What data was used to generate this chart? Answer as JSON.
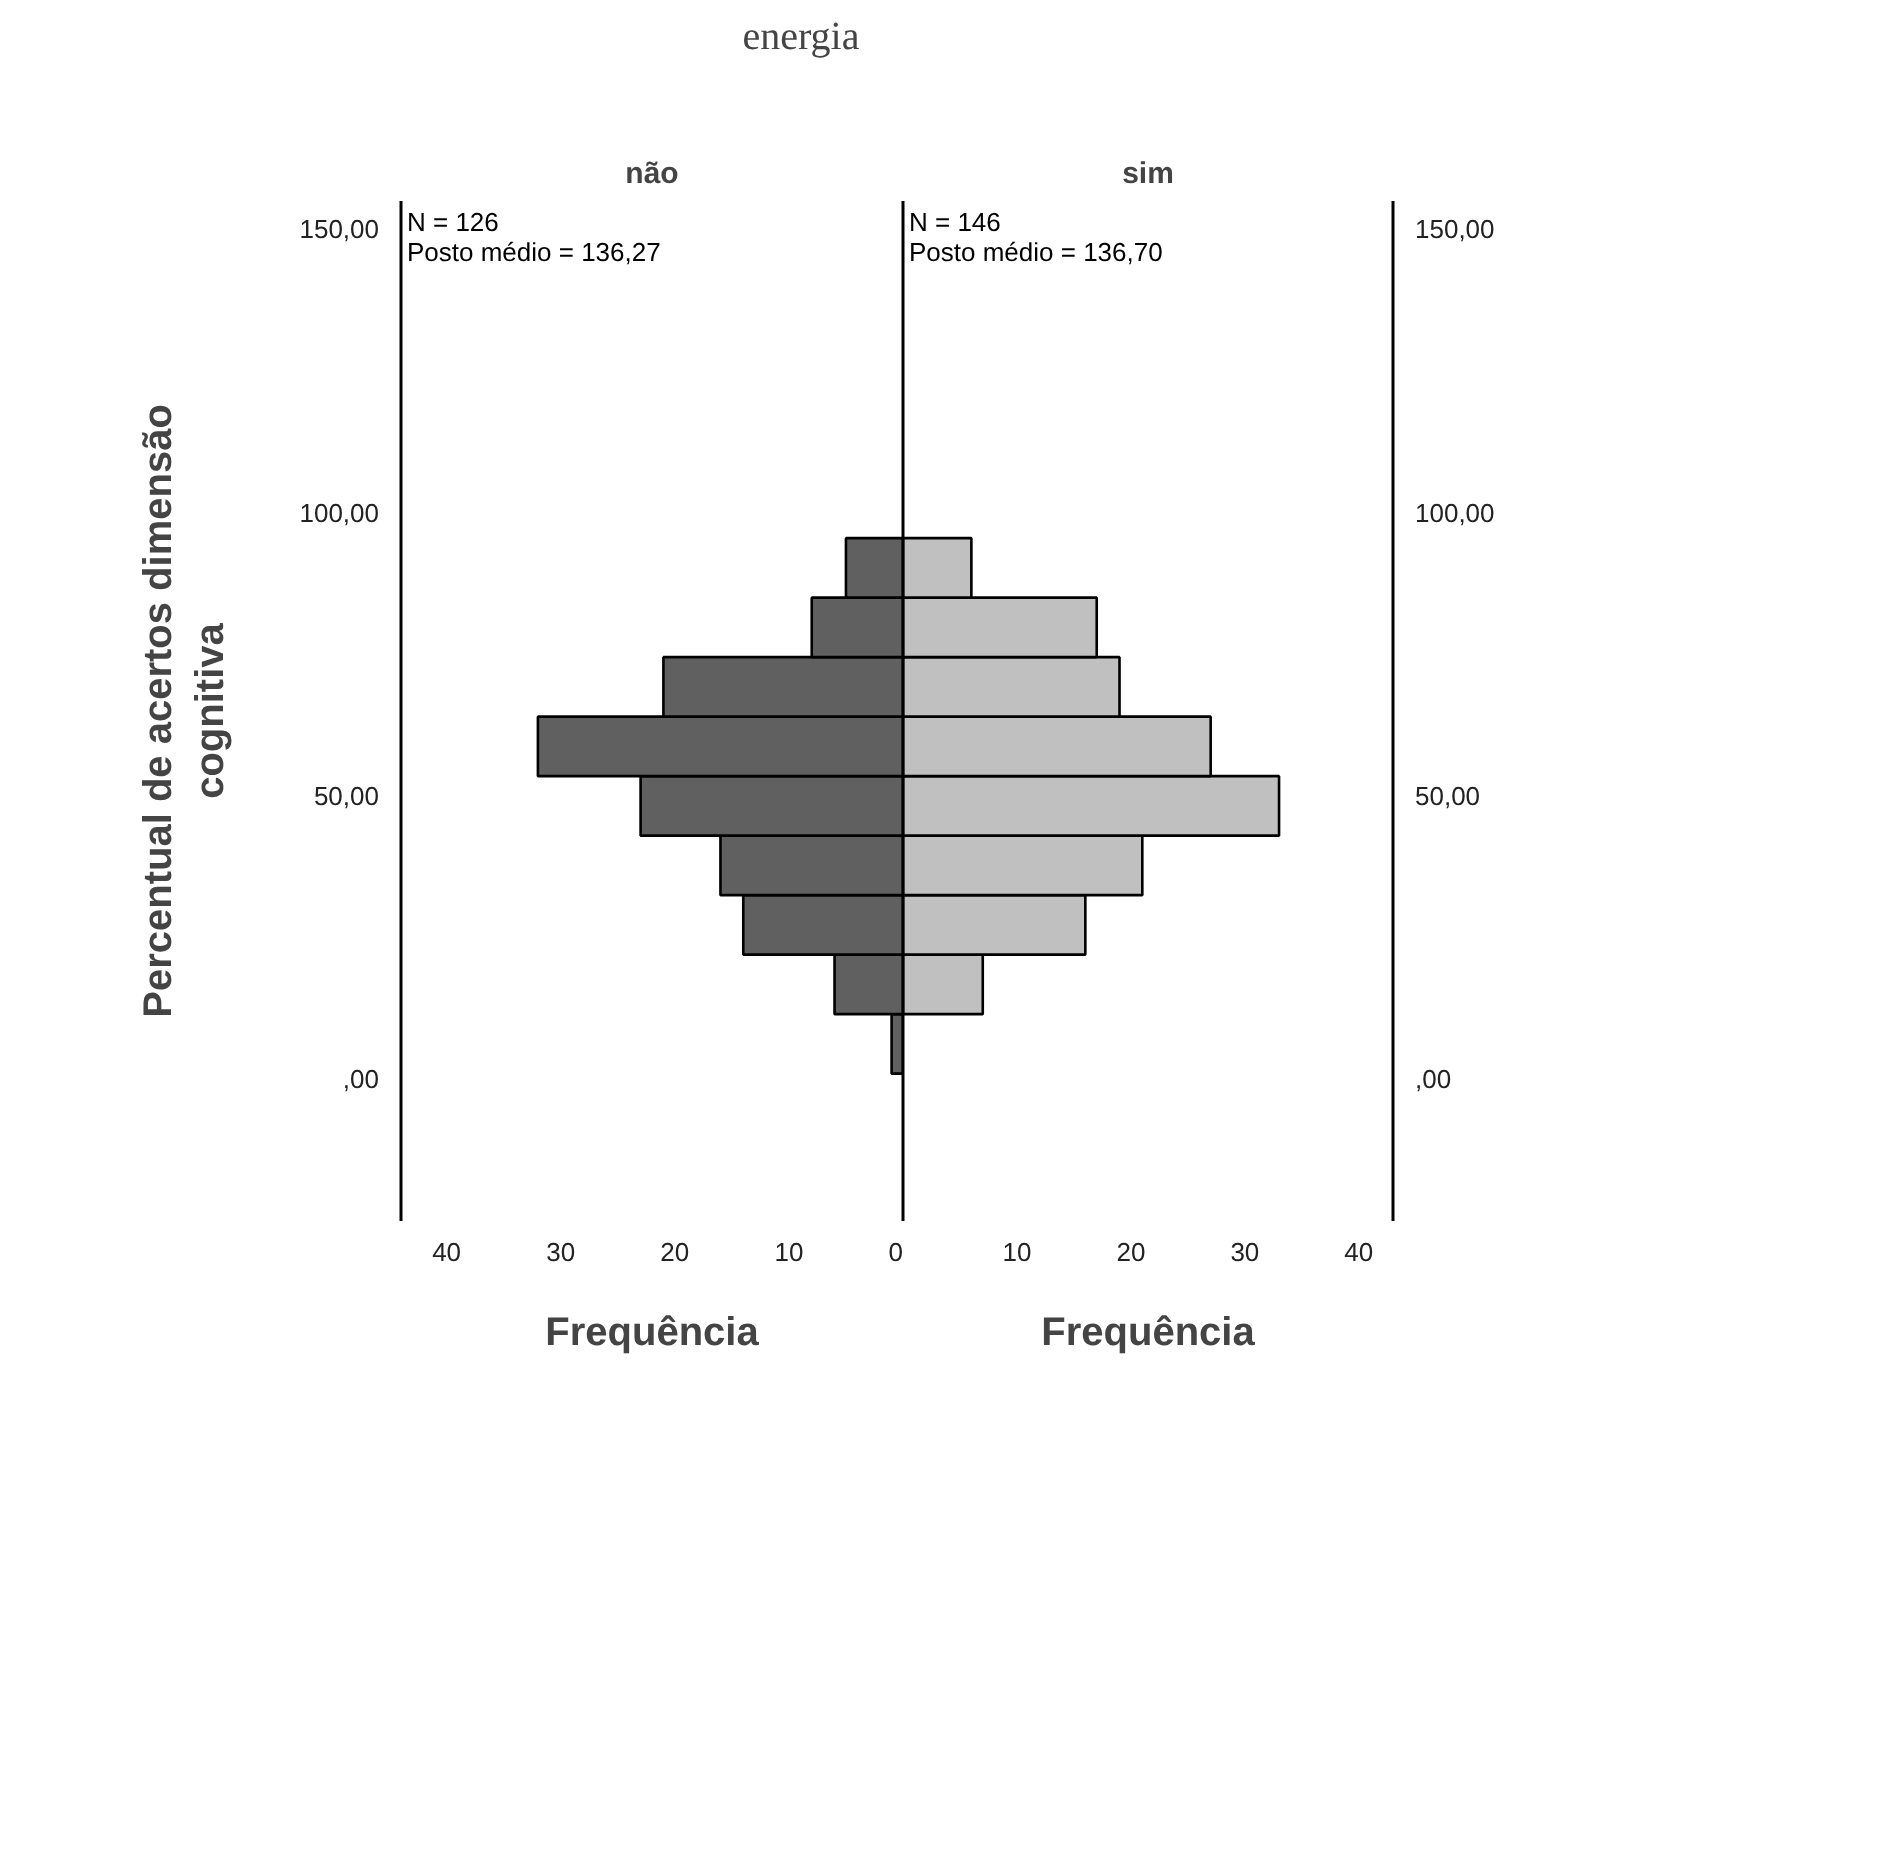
{
  "chart_data": [
    {
      "type": "other",
      "title": "energia"
    },
    {
      "type": "histogram",
      "orientation": "horizontal",
      "title": "não",
      "xlabel": "Frequência",
      "ylabel": "Percentual de acertos dimensão\ncognitiva",
      "color": "#606060",
      "bins": [
        1.0,
        11.5,
        22.0,
        32.5,
        43.0,
        53.5,
        64.0,
        74.5,
        85.0,
        95.5
      ],
      "values": [
        1,
        6,
        14,
        16,
        23,
        32,
        21,
        8,
        5
      ],
      "xlim": [
        44,
        0
      ],
      "xticks": [
        40,
        30,
        20,
        10,
        0
      ],
      "ylim": [
        -25,
        155
      ],
      "yticks": [
        {
          "value": 0,
          "label": ",00"
        },
        {
          "value": 50,
          "label": "50,00"
        },
        {
          "value": 100,
          "label": "100,00"
        },
        {
          "value": 150,
          "label": "150,00"
        }
      ],
      "annotations": [
        "N = 126",
        "Posto médio = 136,27"
      ]
    },
    {
      "type": "histogram",
      "orientation": "horizontal",
      "title": "sim",
      "xlabel": "Frequência",
      "color": "#c0c0c0",
      "bins": [
        1.0,
        11.5,
        22.0,
        32.5,
        43.0,
        53.5,
        64.0,
        74.5,
        85.0,
        95.5
      ],
      "values": [
        0,
        7,
        16,
        21,
        33,
        27,
        19,
        17,
        6
      ],
      "xlim": [
        0,
        43
      ],
      "xticks": [
        10,
        20,
        30,
        40
      ],
      "ylim": [
        -25,
        155
      ],
      "yticks": [
        {
          "value": 0,
          "label": ",00"
        },
        {
          "value": 50,
          "label": "50,00"
        },
        {
          "value": 100,
          "label": "100,00"
        },
        {
          "value": 150,
          "label": "150,00"
        }
      ],
      "annotations": [
        "N = 146",
        "Posto médio = 136,70"
      ]
    }
  ]
}
